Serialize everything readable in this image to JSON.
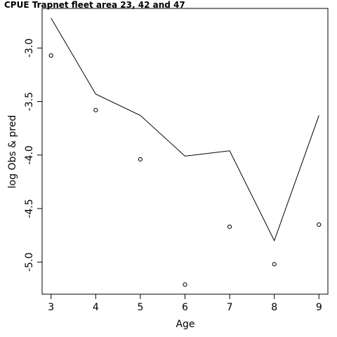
{
  "chart_data": {
    "type": "line",
    "title": "CPUE Trapnet fleet area 23, 42 and 47",
    "xlabel": "Age",
    "ylabel": "log Obs & pred",
    "xlim": [
      2.8,
      9.2
    ],
    "ylim": [
      -5.3,
      -2.63
    ],
    "x_ticks": [
      3,
      4,
      5,
      6,
      7,
      8,
      9
    ],
    "y_ticks": [
      -5.0,
      -4.5,
      -4.0,
      -3.5,
      -3.0
    ],
    "y_tick_labels": [
      "-5.0",
      "-4.5",
      "-4.0",
      "-3.5",
      "-3.0"
    ],
    "x": [
      3,
      4,
      5,
      6,
      7,
      8,
      9
    ],
    "series": [
      {
        "role": "predicted",
        "style": "line",
        "values": [
          -2.72,
          -3.43,
          -3.63,
          -4.01,
          -3.96,
          -4.8,
          -3.63
        ]
      },
      {
        "role": "observed",
        "style": "points",
        "values": [
          -3.07,
          -3.58,
          -4.04,
          -5.21,
          -4.67,
          -5.02,
          -4.65
        ]
      }
    ],
    "grid": false,
    "colors": {
      "line": "#000000",
      "points": "#000000",
      "axes": "#000000"
    }
  }
}
